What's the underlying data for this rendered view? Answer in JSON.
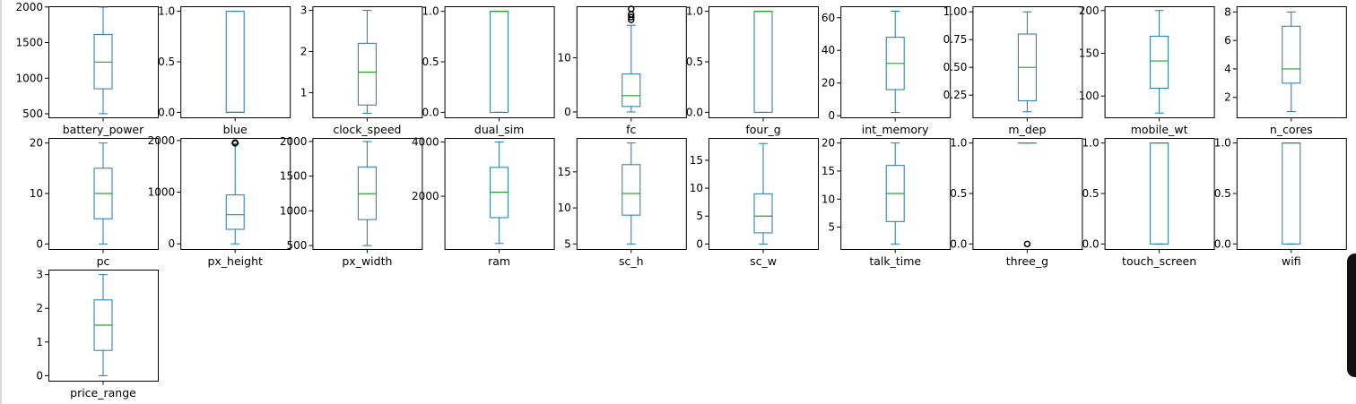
{
  "colors": {
    "box": "#1f77b4",
    "median": "#2ca02c",
    "outlier": "#000000",
    "axis": "#000000"
  },
  "chart_data": [
    {
      "type": "box",
      "xlabel": "battery_power",
      "ylim": [
        450,
        2010
      ],
      "yticks": [
        500,
        1000,
        1500,
        2000
      ],
      "box": {
        "min": 501,
        "q1": 851,
        "median": 1226,
        "q3": 1615,
        "max": 1998
      },
      "outliers": []
    },
    {
      "type": "box",
      "xlabel": "blue",
      "ylim": [
        -0.05,
        1.05
      ],
      "yticks": [
        0.0,
        0.5,
        1.0
      ],
      "box": {
        "min": 0,
        "q1": 0,
        "median": 0,
        "q3": 1,
        "max": 1
      },
      "outliers": []
    },
    {
      "type": "box",
      "xlabel": "clock_speed",
      "ylim": [
        0.4,
        3.1
      ],
      "yticks": [
        1,
        2,
        3
      ],
      "box": {
        "min": 0.5,
        "q1": 0.7,
        "median": 1.5,
        "q3": 2.2,
        "max": 3.0
      },
      "outliers": []
    },
    {
      "type": "box",
      "xlabel": "dual_sim",
      "ylim": [
        -0.05,
        1.05
      ],
      "yticks": [
        0.0,
        0.5,
        1.0
      ],
      "box": {
        "min": 0,
        "q1": 0,
        "median": 1,
        "q3": 1,
        "max": 1
      },
      "outliers": []
    },
    {
      "type": "box",
      "xlabel": "fc",
      "ylim": [
        -1,
        19.5
      ],
      "yticks": [
        0,
        10
      ],
      "box": {
        "min": 0,
        "q1": 1,
        "median": 3,
        "q3": 7,
        "max": 16
      },
      "outliers": [
        17,
        17.5,
        18,
        19
      ]
    },
    {
      "type": "box",
      "xlabel": "four_g",
      "ylim": [
        -0.05,
        1.05
      ],
      "yticks": [
        0.0,
        0.5,
        1.0
      ],
      "box": {
        "min": 0,
        "q1": 0,
        "median": 1,
        "q3": 1,
        "max": 1
      },
      "outliers": []
    },
    {
      "type": "box",
      "xlabel": "int_memory",
      "ylim": [
        -1,
        67
      ],
      "yticks": [
        0,
        20,
        40,
        60
      ],
      "box": {
        "min": 2,
        "q1": 16,
        "median": 32,
        "q3": 48,
        "max": 64
      },
      "outliers": []
    },
    {
      "type": "box",
      "xlabel": "m_dep",
      "ylim": [
        0.05,
        1.05
      ],
      "yticks": [
        0.25,
        0.5,
        0.75,
        1.0
      ],
      "ytick_labels": [
        "0.25",
        "0.50",
        "0.75",
        "1.00"
      ],
      "box": {
        "min": 0.1,
        "q1": 0.2,
        "median": 0.5,
        "q3": 0.8,
        "max": 1.0
      },
      "outliers": []
    },
    {
      "type": "box",
      "xlabel": "mobile_wt",
      "ylim": [
        75,
        205
      ],
      "yticks": [
        100,
        150,
        200
      ],
      "box": {
        "min": 80,
        "q1": 109,
        "median": 141,
        "q3": 170,
        "max": 200
      },
      "outliers": []
    },
    {
      "type": "box",
      "xlabel": "n_cores",
      "ylim": [
        0.6,
        8.4
      ],
      "yticks": [
        2,
        4,
        6,
        8
      ],
      "box": {
        "min": 1,
        "q1": 3,
        "median": 4,
        "q3": 7,
        "max": 8
      },
      "outliers": []
    },
    {
      "type": "box",
      "xlabel": "pc",
      "ylim": [
        -1,
        21
      ],
      "yticks": [
        0,
        10,
        20
      ],
      "box": {
        "min": 0,
        "q1": 5,
        "median": 10,
        "q3": 15,
        "max": 20
      },
      "outliers": []
    },
    {
      "type": "box",
      "xlabel": "px_height",
      "ylim": [
        -100,
        2050
      ],
      "yticks": [
        0,
        1000,
        2000
      ],
      "box": {
        "min": 0,
        "q1": 282,
        "median": 564,
        "q3": 947,
        "max": 1944
      },
      "outliers": [
        1949,
        1960
      ]
    },
    {
      "type": "box",
      "xlabel": "px_width",
      "ylim": [
        450,
        2050
      ],
      "yticks": [
        500,
        1000,
        1500,
        2000
      ],
      "box": {
        "min": 500,
        "q1": 874,
        "median": 1247,
        "q3": 1633,
        "max": 1998
      },
      "outliers": []
    },
    {
      "type": "box",
      "xlabel": "ram",
      "ylim": [
        50,
        4150
      ],
      "yticks": [
        2000,
        4000
      ],
      "box": {
        "min": 256,
        "q1": 1208,
        "median": 2146,
        "q3": 3064,
        "max": 3998
      },
      "outliers": []
    },
    {
      "type": "box",
      "xlabel": "sc_h",
      "ylim": [
        4.3,
        19.7
      ],
      "yticks": [
        5,
        10,
        15
      ],
      "box": {
        "min": 5,
        "q1": 9,
        "median": 12,
        "q3": 16,
        "max": 19
      },
      "outliers": []
    },
    {
      "type": "box",
      "xlabel": "sc_w",
      "ylim": [
        -0.9,
        19
      ],
      "yticks": [
        0,
        5,
        10,
        15
      ],
      "box": {
        "min": 0,
        "q1": 2,
        "median": 5,
        "q3": 9,
        "max": 18
      },
      "outliers": []
    },
    {
      "type": "box",
      "xlabel": "talk_time",
      "ylim": [
        1.1,
        20.9
      ],
      "yticks": [
        5,
        10,
        15,
        20
      ],
      "box": {
        "min": 2,
        "q1": 6,
        "median": 11,
        "q3": 16,
        "max": 20
      },
      "outliers": []
    },
    {
      "type": "box",
      "xlabel": "three_g",
      "ylim": [
        -0.05,
        1.05
      ],
      "yticks": [
        0.0,
        0.5,
        1.0
      ],
      "box": {
        "min": 1,
        "q1": 1,
        "median": 1,
        "q3": 1,
        "max": 1
      },
      "outliers": [
        0
      ]
    },
    {
      "type": "box",
      "xlabel": "touch_screen",
      "ylim": [
        -0.05,
        1.05
      ],
      "yticks": [
        0.0,
        0.5,
        1.0
      ],
      "box": {
        "min": 0,
        "q1": 0,
        "median": 1,
        "q3": 1,
        "max": 1
      },
      "outliers": []
    },
    {
      "type": "box",
      "xlabel": "wifi",
      "ylim": [
        -0.05,
        1.05
      ],
      "yticks": [
        0.0,
        0.5,
        1.0
      ],
      "box": {
        "min": 0,
        "q1": 0,
        "median": 1,
        "q3": 1,
        "max": 1
      },
      "outliers": []
    },
    {
      "type": "box",
      "xlabel": "price_range",
      "ylim": [
        -0.15,
        3.15
      ],
      "yticks": [
        0,
        1,
        2,
        3
      ],
      "box": {
        "min": 0,
        "q1": 0.75,
        "median": 1.5,
        "q3": 2.25,
        "max": 3
      },
      "outliers": []
    }
  ]
}
